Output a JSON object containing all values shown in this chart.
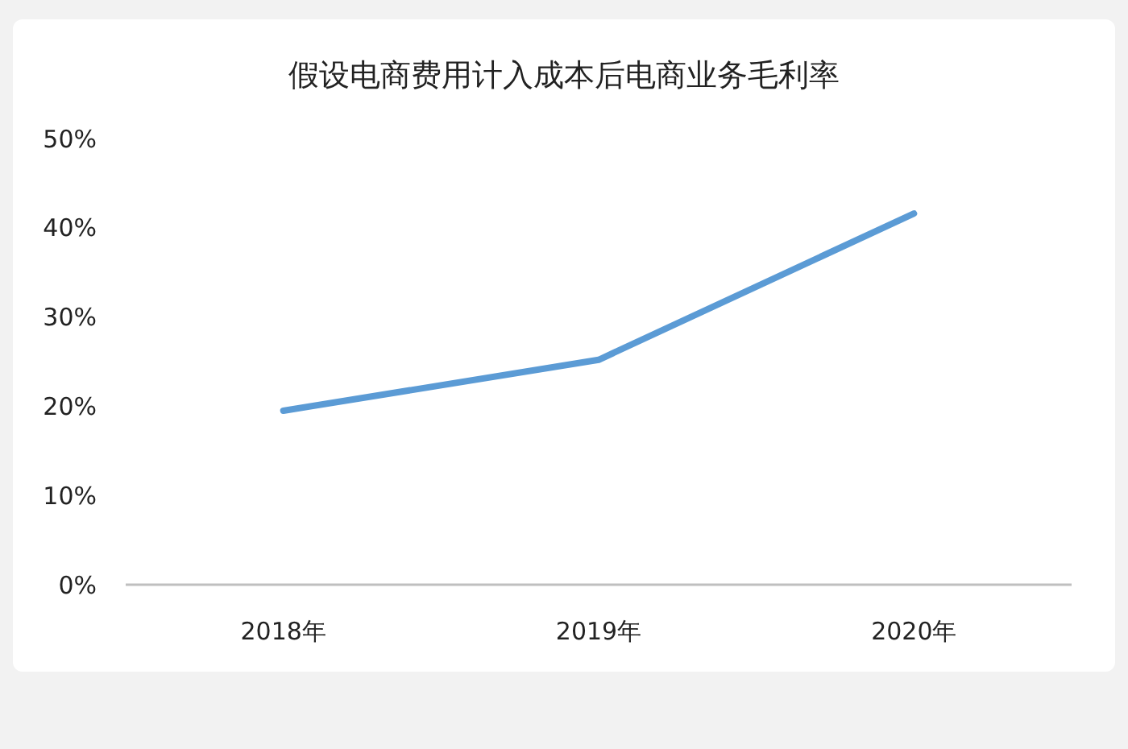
{
  "chart_data": {
    "type": "line",
    "title": "假设电商费用计入成本后电商业务毛利率",
    "categories": [
      "2018年",
      "2019年",
      "2020年"
    ],
    "series": [
      {
        "color": "#5b9bd5",
        "values": [
          19.5,
          25.2,
          41.6
        ]
      }
    ],
    "ylim": [
      0,
      50
    ],
    "yticks": [
      {
        "value": 0,
        "label": "0%"
      },
      {
        "value": 10,
        "label": "10%"
      },
      {
        "value": 20,
        "label": "20%"
      },
      {
        "value": 30,
        "label": "30%"
      },
      {
        "value": 40,
        "label": "40%"
      },
      {
        "value": 50,
        "label": "50%"
      }
    ],
    "grid": false,
    "marker": "none",
    "line_style": "solid"
  }
}
